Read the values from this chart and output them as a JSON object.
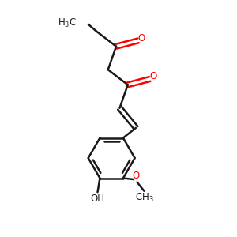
{
  "bg_color": "#ffffff",
  "bond_color": "#1a1a1a",
  "oxygen_color": "#ff0000",
  "line_width": 1.8,
  "figsize": [
    3.0,
    3.0
  ],
  "dpi": 100,
  "xlim": [
    0,
    10
  ],
  "ylim": [
    0,
    10
  ]
}
